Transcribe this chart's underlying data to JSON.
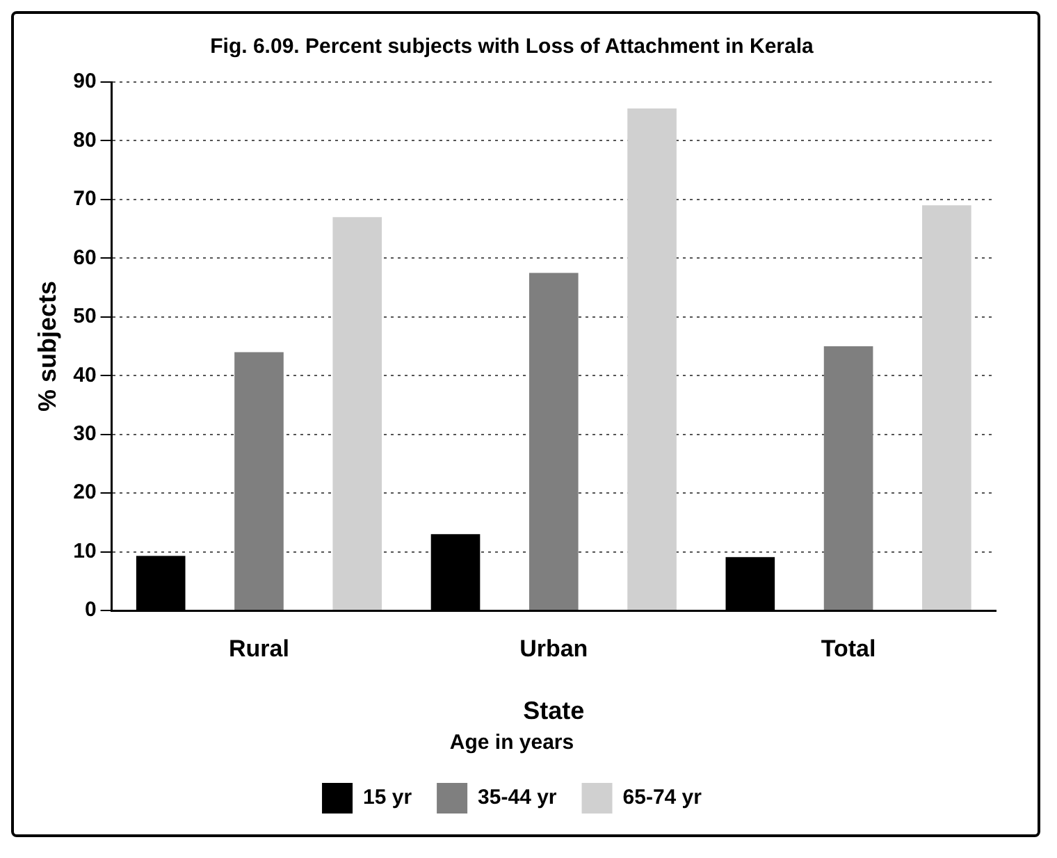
{
  "chart_data": {
    "type": "bar",
    "title": "Fig. 6.09. Percent subjects with Loss of Attachment in Kerala",
    "xlabel": "State",
    "ylabel": "% subjects",
    "legend_title": "Age in years",
    "categories": [
      "Rural",
      "Urban",
      "Total"
    ],
    "series": [
      {
        "name": "15 yr",
        "color": "#000000",
        "values": [
          9.3,
          13,
          9.1
        ]
      },
      {
        "name": "35-44 yr",
        "color": "#7f7f7f",
        "values": [
          44,
          57.5,
          45
        ]
      },
      {
        "name": "65-74 yr",
        "color": "#d0d0d0",
        "values": [
          67,
          85.5,
          69
        ]
      }
    ],
    "ylim": [
      0,
      90
    ],
    "yticks": [
      0,
      10,
      20,
      30,
      40,
      50,
      60,
      70,
      80,
      90
    ],
    "grid": "y",
    "legend": "bottom"
  }
}
